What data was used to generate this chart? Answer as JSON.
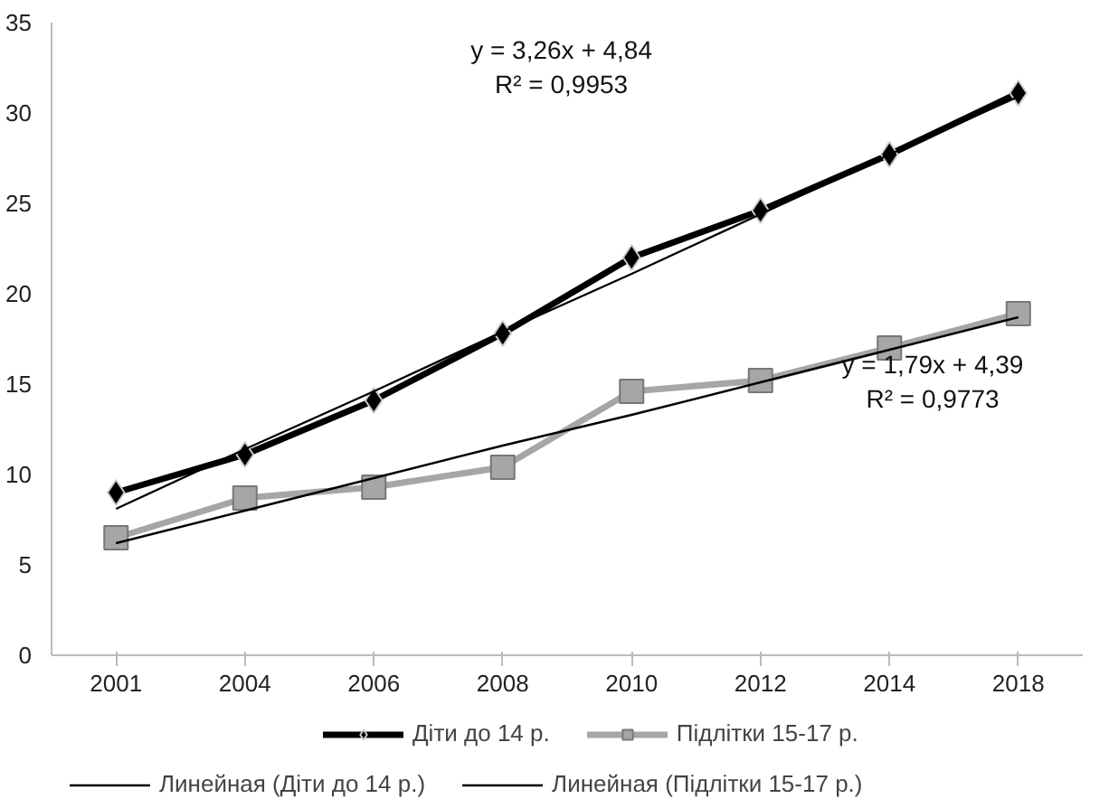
{
  "chart_data": {
    "type": "line",
    "categories": [
      "2001",
      "2004",
      "2006",
      "2008",
      "2010",
      "2012",
      "2014",
      "2018"
    ],
    "ylim": [
      0,
      35
    ],
    "yticks": [
      0,
      5,
      10,
      15,
      20,
      25,
      30,
      35
    ],
    "grid": false,
    "legend": "bottom",
    "line_style": "solid",
    "series": [
      {
        "name": "Діти до 14 р.",
        "color": "#000000",
        "marker": "diamond",
        "values": [
          9.0,
          11.1,
          14.1,
          17.8,
          22.0,
          24.6,
          27.7,
          31.1
        ]
      },
      {
        "name": "Підлітки 15-17 р.",
        "color": "#a6a6a6",
        "marker": "square",
        "values": [
          6.5,
          8.7,
          9.3,
          10.4,
          14.6,
          15.2,
          17.0,
          18.9
        ]
      },
      {
        "name": "Линейная (Діти до 14 р.)",
        "type": "line",
        "color": "#000000",
        "marker": "none",
        "values": [
          8.1,
          11.4,
          14.6,
          17.9,
          21.1,
          24.4,
          27.7,
          30.9
        ]
      },
      {
        "name": "Линейная (Підлітки 15-17 р.)",
        "type": "line",
        "color": "#000000",
        "marker": "none",
        "values": [
          6.2,
          8.0,
          9.8,
          11.6,
          13.3,
          15.1,
          16.9,
          18.7
        ]
      }
    ],
    "annotations": [
      "y = 3,26x + 4,84\nR² = 0,9953",
      "y = 1,79x + 4,39\nR² = 0,9773"
    ]
  }
}
